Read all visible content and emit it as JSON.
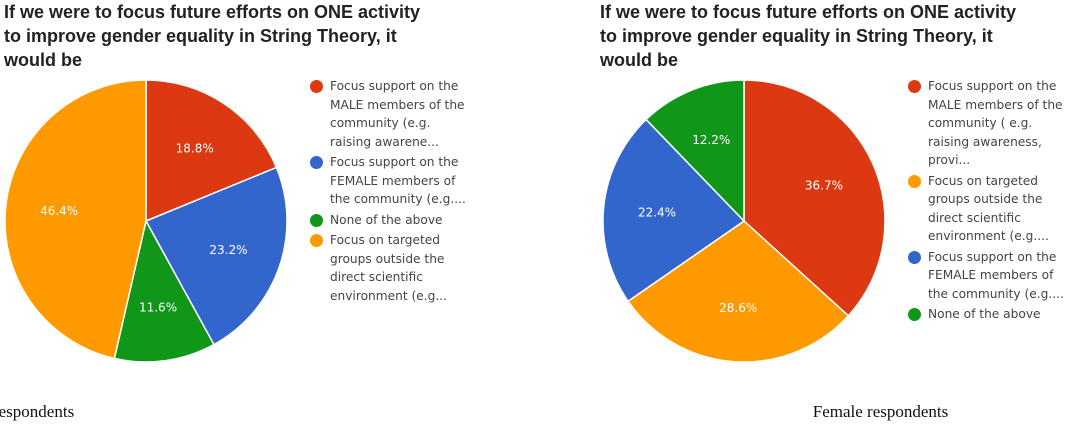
{
  "chart_data": [
    {
      "type": "pie",
      "title": "If we were to focus future efforts on ONE activity\nto improve gender equality in String Theory, it\nwould be",
      "caption": "Male respondents",
      "legend_position": "right",
      "slices": [
        {
          "label": "Focus support on the MALE members of the community (e.g. raising awarene...",
          "value": 18.8,
          "value_label": "18.8%",
          "color": "#dc3912"
        },
        {
          "label": "Focus support on the FEMALE members of the community (e.g....",
          "value": 23.2,
          "value_label": "23.2%",
          "color": "#3366cc"
        },
        {
          "label": "None of the above",
          "value": 11.6,
          "value_label": "11.6%",
          "color": "#109618"
        },
        {
          "label": "Focus on targeted groups outside the direct scientific environment (e.g...",
          "value": 46.4,
          "value_label": "46.4%",
          "color": "#ff9900"
        }
      ]
    },
    {
      "type": "pie",
      "title": "If we were to focus future efforts on ONE activity\nto improve gender equality in String Theory, it\nwould be",
      "caption": "Female respondents",
      "legend_position": "right",
      "slices": [
        {
          "label": "Focus support on the MALE members of the community ( e.g. raising awareness, provi...",
          "value": 36.7,
          "value_label": "36.7%",
          "color": "#dc3912"
        },
        {
          "label": "Focus on targeted groups outside the direct scientific environment (e.g....",
          "value": 28.6,
          "value_label": "28.6%",
          "color": "#ff9900"
        },
        {
          "label": "Focus support on the FEMALE members of the community (e.g....",
          "value": 22.4,
          "value_label": "22.4%",
          "color": "#3366cc"
        },
        {
          "label": "None of the above",
          "value": 12.2,
          "value_label": "12.2%",
          "color": "#109618"
        }
      ]
    }
  ]
}
